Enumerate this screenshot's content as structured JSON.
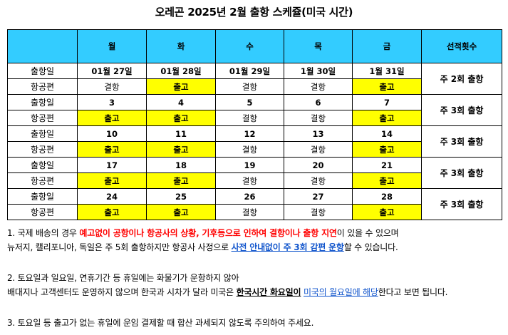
{
  "title": "오레곤 2025년 2월 출항 스케쥴(미국 시간)",
  "header": [
    "월",
    "화",
    "수",
    "목",
    "금",
    "선적횟수"
  ],
  "row_labels": {
    "departure": "출항일",
    "flight": "항공편"
  },
  "weeks": [
    {
      "dates": [
        "01월 27일",
        "01월 28일",
        "01월 29일",
        "1월 30일",
        "1월 31일"
      ],
      "flights": [
        "결항",
        "출고",
        "결항",
        "결항",
        "출고"
      ],
      "frequency": "주 2회 출항"
    },
    {
      "dates": [
        "3",
        "4",
        "5",
        "6",
        "7"
      ],
      "flights": [
        "출고",
        "출고",
        "결항",
        "결항",
        "출고"
      ],
      "frequency": "주 3회 출항"
    },
    {
      "dates": [
        "10",
        "11",
        "12",
        "13",
        "14"
      ],
      "flights": [
        "출고",
        "출고",
        "결항",
        "결항",
        "출고"
      ],
      "frequency": "주 3회 출항"
    },
    {
      "dates": [
        "17",
        "18",
        "19",
        "20",
        "21"
      ],
      "flights": [
        "출고",
        "출고",
        "결항",
        "결항",
        "출고"
      ],
      "frequency": "주 3회 출항"
    },
    {
      "dates": [
        "24",
        "25",
        "26",
        "27",
        "28"
      ],
      "flights": [
        "출고",
        "출고",
        "결항",
        "결항",
        "출고"
      ],
      "frequency": "주 3회 출항"
    }
  ],
  "notes": {
    "n1_a": "1. 국제 배송의 경우 ",
    "n1_red": "예고없이 공항이나 항공사의 상황, 기후등으로 인하여 결항이나 출항 지연",
    "n1_b": "이 있을 수 있으며",
    "n1_c": "뉴저지, 캘리포니아, 독일은 주 5회 출항하지만 항공사 사정으로 ",
    "n1_blue": "사전 안내없이 주 3회 감편 운항",
    "n1_d": "할 수 있습니다.",
    "n2_a": "2. 토요일과 일요일, 연휴기간 등 휴일에는 화물기가 운항하지 않아",
    "n2_b": "배대지나 고객센터도 운영하지 않으며 한국과 시차가 달라 미국은 ",
    "n2_bold": "한국시간 화요일이",
    "n2_sp": " ",
    "n2_blue": "미국의 월요일에 해당",
    "n2_c": "한다고 보면 됩니다.",
    "n3": "3. 토요일 등 출고가 없는 휴일에 운임 결제할 때 합산 과세되지 않도록 주의하여 주세요."
  },
  "colors": {
    "header_bg": "#33ccff",
    "highlight": "#ffff00",
    "warning": "#ff0000",
    "link": "#1155cc"
  }
}
